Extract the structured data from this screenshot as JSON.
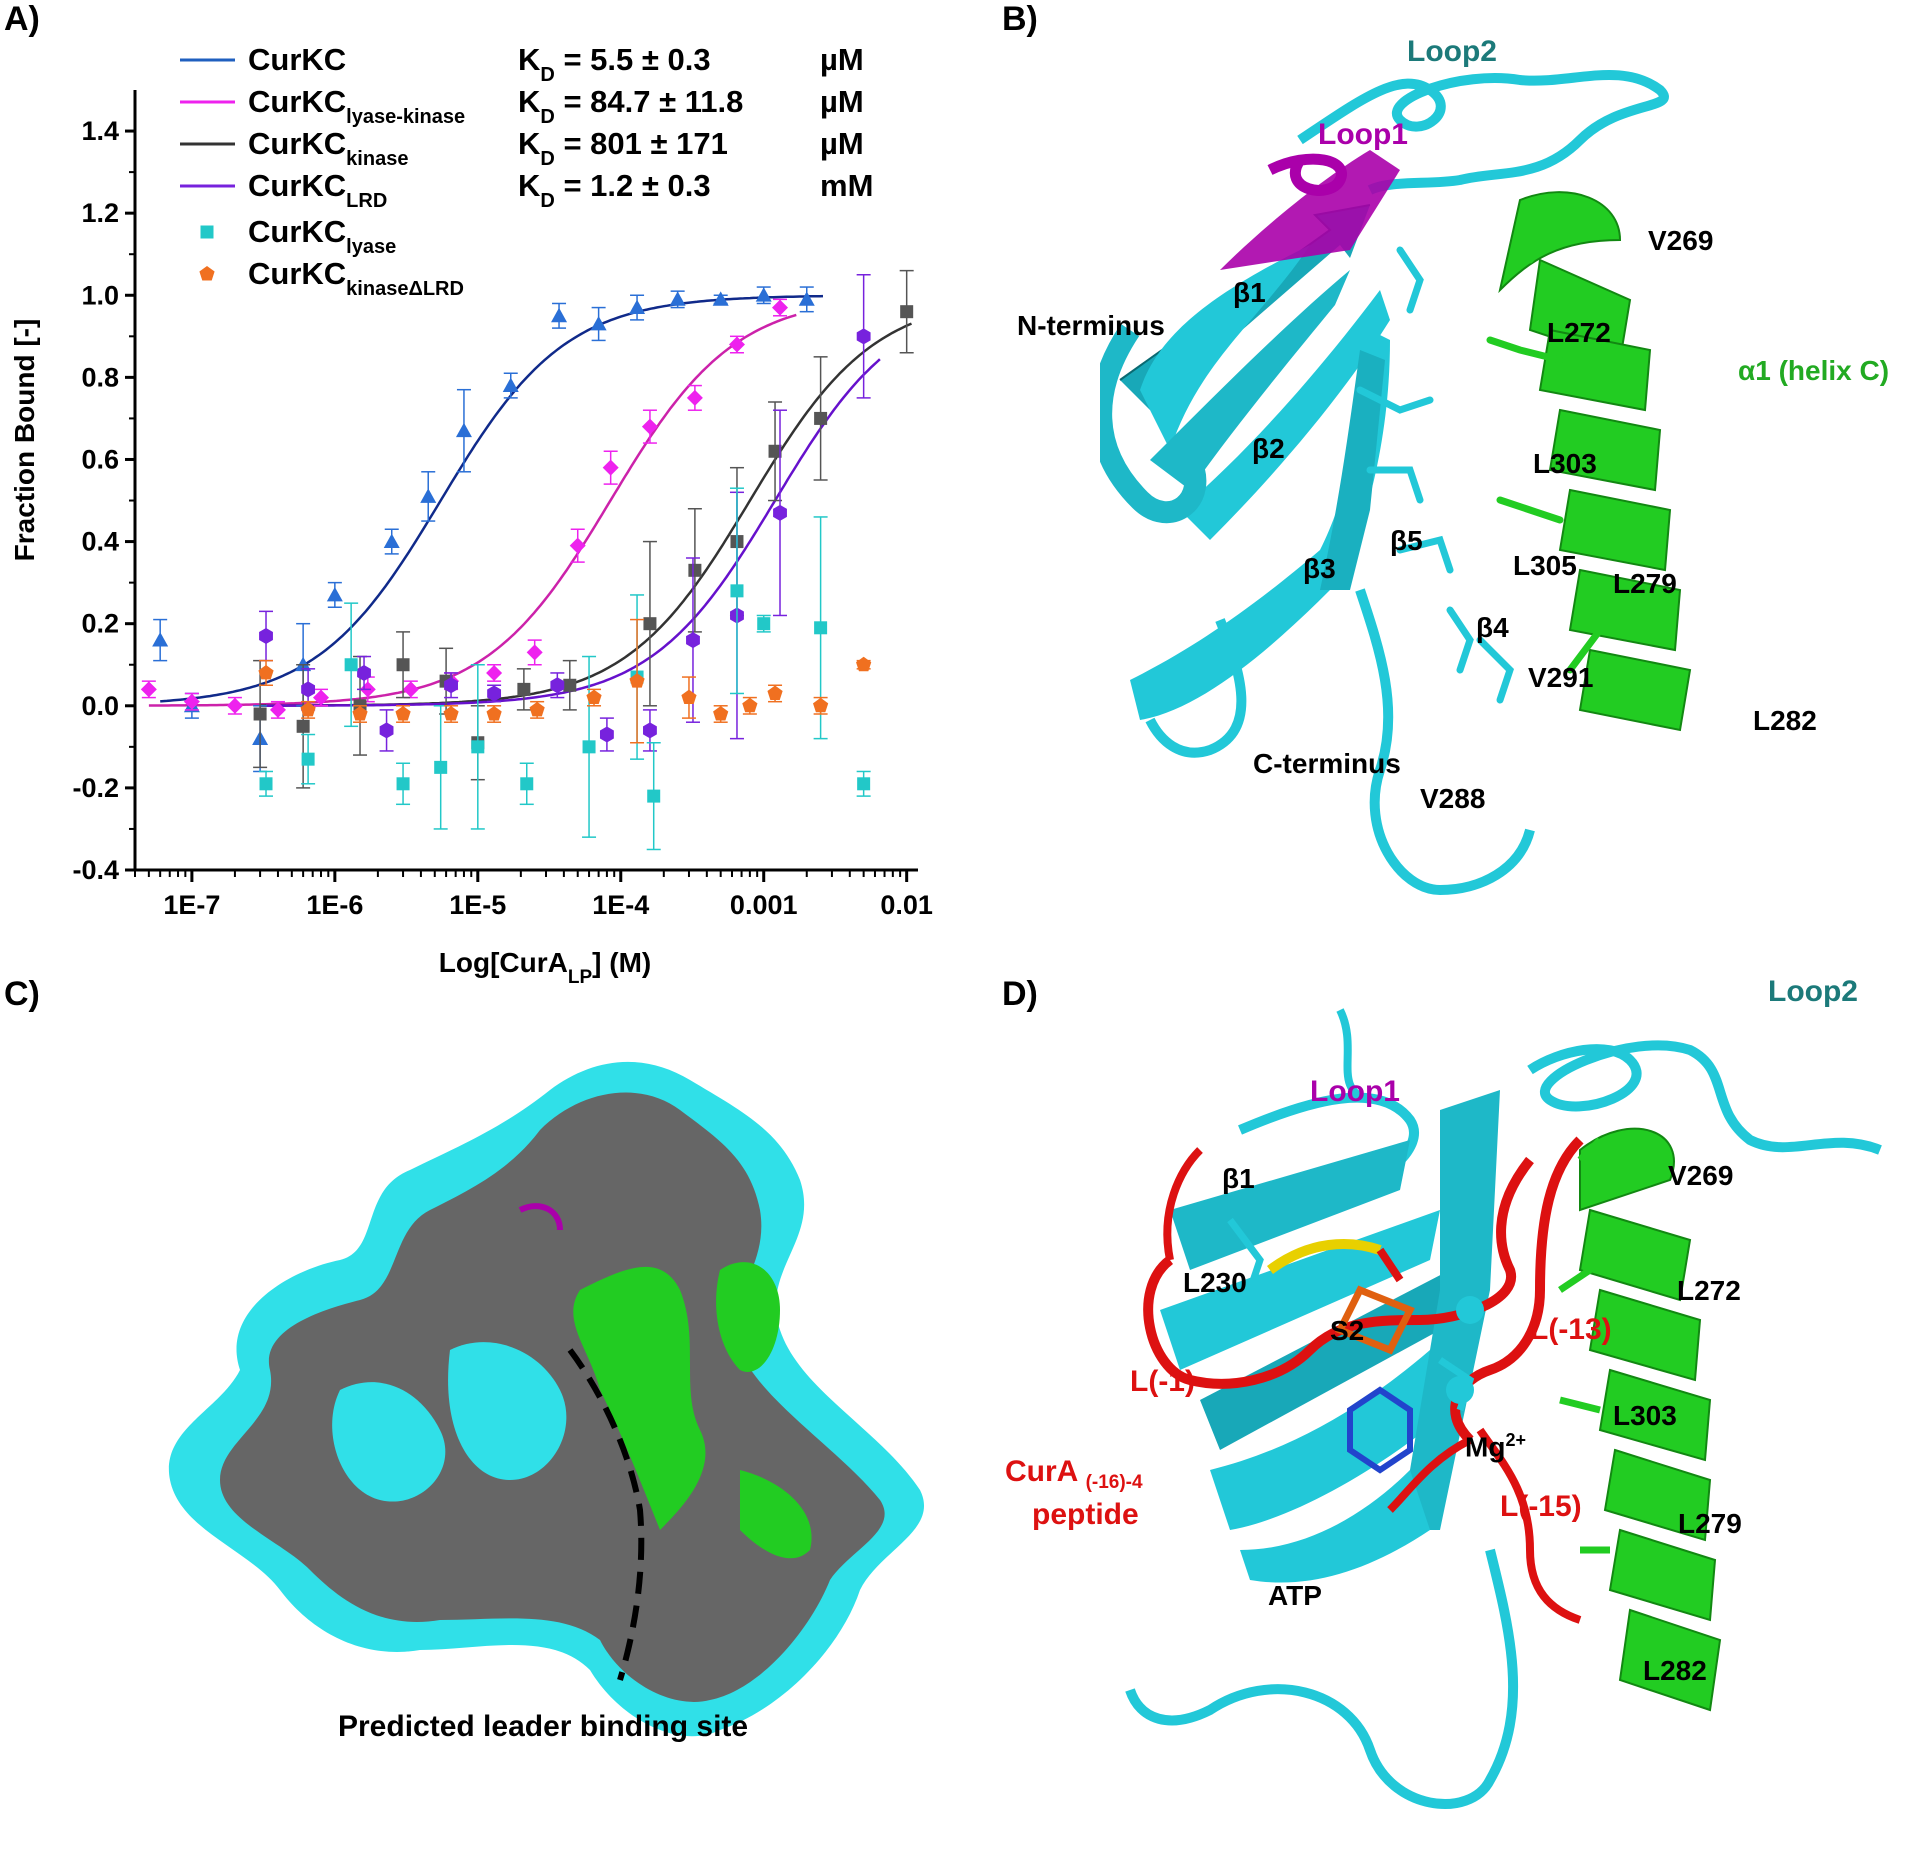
{
  "panels": {
    "a": "A)",
    "b": "B)",
    "c": "C)",
    "d": "D)"
  },
  "colors": {
    "cyan": "#22c8d8",
    "green": "#22cc22",
    "magenta": "#aa00aa",
    "red": "#dd1111",
    "teal_label": "#1c7a7a",
    "gray": "#666666"
  },
  "chart_data": {
    "type": "scatter",
    "xlabel": "Log[CurA",
    "xlabel_sub": "LP",
    "xlabel_tail": "] (M)",
    "ylabel": "Fraction Bound [-]",
    "xscale": "log",
    "xlim": [
      4e-08,
      0.012
    ],
    "ylim": [
      -0.4,
      1.5
    ],
    "xticks": [
      "1E-7",
      "1E-6",
      "1E-5",
      "1E-4",
      "0.001",
      "0.01"
    ],
    "yticks": [
      "-0.4",
      "-0.2",
      "0.0",
      "0.2",
      "0.4",
      "0.6",
      "0.8",
      "1.0",
      "1.2",
      "1.4"
    ],
    "legend": [
      {
        "name": "CurKC",
        "sub": "",
        "kd": "K",
        "kd_sub": "D",
        "kd_val": "= 5.5 ± 0.3",
        "unit": "µM",
        "color": "#1f5fbf",
        "marker": "line"
      },
      {
        "name": "CurKC",
        "sub": "lyase-kinase",
        "kd": "K",
        "kd_sub": "D",
        "kd_val": "= 84.7 ± 11.8",
        "unit": "µM",
        "color": "#ee22ee",
        "marker": "line"
      },
      {
        "name": "CurKC",
        "sub": "kinase",
        "kd": "K",
        "kd_sub": "D",
        "kd_val": "= 801 ± 171",
        "unit": "µM",
        "color": "#333333",
        "marker": "line"
      },
      {
        "name": "CurKC",
        "sub": "LRD",
        "kd": "K",
        "kd_sub": "D",
        "kd_val": "= 1.2 ± 0.3",
        "unit": "mM",
        "color": "#7722dd",
        "marker": "line"
      },
      {
        "name": "CurKC",
        "sub": "lyase",
        "kd": "",
        "kd_sub": "",
        "kd_val": "",
        "unit": "",
        "color": "#22c8c8",
        "marker": "square"
      },
      {
        "name": "CurKC",
        "sub": "kinaseΔLRD",
        "kd": "",
        "kd_sub": "",
        "kd_val": "",
        "unit": "",
        "color": "#f07020",
        "marker": "pentagon"
      }
    ],
    "series": [
      {
        "name": "CurKC",
        "color": "#2a6fd6",
        "fit": "#102a8a",
        "kd": 5.5e-06,
        "marker": "triangle",
        "points": [
          [
            6e-08,
            0.16,
            0.05
          ],
          [
            1e-07,
            0.0,
            0.03
          ],
          [
            3e-07,
            -0.08,
            0.08
          ],
          [
            6e-07,
            0.1,
            0.1
          ],
          [
            1e-06,
            0.27,
            0.03
          ],
          [
            2.5e-06,
            0.4,
            0.03
          ],
          [
            4.5e-06,
            0.51,
            0.06
          ],
          [
            8e-06,
            0.67,
            0.1
          ],
          [
            1.7e-05,
            0.78,
            0.03
          ],
          [
            3.7e-05,
            0.95,
            0.03
          ],
          [
            7e-05,
            0.93,
            0.04
          ],
          [
            0.00013,
            0.97,
            0.03
          ],
          [
            0.00025,
            0.99,
            0.02
          ],
          [
            0.0005,
            0.99,
            0.01
          ],
          [
            0.001,
            1.0,
            0.02
          ],
          [
            0.002,
            0.99,
            0.03
          ]
        ]
      },
      {
        "name": "CurKC lyase-kinase",
        "color": "#ee22ee",
        "fit": "#cc22aa",
        "kd": 8.47e-05,
        "marker": "diamond",
        "points": [
          [
            5e-08,
            0.04,
            0.02
          ],
          [
            1e-07,
            0.01,
            0.02
          ],
          [
            2e-07,
            0.0,
            0.02
          ],
          [
            4e-07,
            -0.01,
            0.02
          ],
          [
            8e-07,
            0.02,
            0.02
          ],
          [
            1.7e-06,
            0.04,
            0.03
          ],
          [
            3.4e-06,
            0.04,
            0.02
          ],
          [
            6.5e-06,
            0.06,
            0.02
          ],
          [
            1.3e-05,
            0.08,
            0.02
          ],
          [
            2.5e-05,
            0.13,
            0.03
          ],
          [
            5e-05,
            0.39,
            0.04
          ],
          [
            8.5e-05,
            0.58,
            0.04
          ],
          [
            0.00016,
            0.68,
            0.04
          ],
          [
            0.00033,
            0.75,
            0.03
          ],
          [
            0.00065,
            0.88,
            0.02
          ],
          [
            0.0013,
            0.97,
            0.02
          ]
        ]
      },
      {
        "name": "CurKC kinase",
        "color": "#555555",
        "fit": "#333333",
        "kd": 0.000801,
        "marker": "square",
        "points": [
          [
            3e-07,
            -0.02,
            0.13
          ],
          [
            6e-07,
            -0.05,
            0.15
          ],
          [
            1.5e-06,
            0.0,
            0.12
          ],
          [
            3e-06,
            0.1,
            0.08
          ],
          [
            6e-06,
            0.06,
            0.08
          ],
          [
            1e-05,
            -0.09,
            0.09
          ],
          [
            2.1e-05,
            0.04,
            0.05
          ],
          [
            4.4e-05,
            0.05,
            0.06
          ],
          [
            0.00016,
            0.2,
            0.2
          ],
          [
            0.00033,
            0.33,
            0.15
          ],
          [
            0.00065,
            0.4,
            0.18
          ],
          [
            0.0012,
            0.62,
            0.12
          ],
          [
            0.0025,
            0.7,
            0.15
          ],
          [
            0.01,
            0.96,
            0.1
          ]
        ]
      },
      {
        "name": "CurKC LRD",
        "color": "#7722dd",
        "fit": "#6611cc",
        "kd": 0.0012,
        "marker": "hexagon",
        "points": [
          [
            3.3e-07,
            0.17,
            0.06
          ],
          [
            6.5e-07,
            0.04,
            0.05
          ],
          [
            1.6e-06,
            0.08,
            0.04
          ],
          [
            2.3e-06,
            -0.06,
            0.05
          ],
          [
            6.5e-06,
            0.05,
            0.03
          ],
          [
            1.3e-05,
            0.03,
            0.02
          ],
          [
            3.6e-05,
            0.05,
            0.03
          ],
          [
            8e-05,
            -0.07,
            0.04
          ],
          [
            0.00016,
            -0.06,
            0.05
          ],
          [
            0.00032,
            0.16,
            0.2
          ],
          [
            0.00065,
            0.22,
            0.3
          ],
          [
            0.0013,
            0.47,
            0.25
          ],
          [
            0.005,
            0.9,
            0.15
          ]
        ]
      },
      {
        "name": "CurKC lyase",
        "color": "#22c8c8",
        "fit": "",
        "kd": 0,
        "marker": "square",
        "points": [
          [
            3.3e-07,
            -0.19,
            0.03
          ],
          [
            6.5e-07,
            -0.13,
            0.06
          ],
          [
            1.3e-06,
            0.1,
            0.15
          ],
          [
            3e-06,
            -0.19,
            0.05
          ],
          [
            5.5e-06,
            -0.15,
            0.15
          ],
          [
            1e-05,
            -0.1,
            0.2
          ],
          [
            2.2e-05,
            -0.19,
            0.05
          ],
          [
            6e-05,
            -0.1,
            0.22
          ],
          [
            0.00013,
            0.07,
            0.2
          ],
          [
            0.00017,
            -0.22,
            0.13
          ],
          [
            0.00065,
            0.28,
            0.25
          ],
          [
            0.001,
            0.2,
            0.02
          ],
          [
            0.0025,
            0.19,
            0.27
          ],
          [
            0.005,
            -0.19,
            0.03
          ]
        ]
      },
      {
        "name": "CurKC kinaseΔLRD",
        "color": "#f07020",
        "fit": "",
        "kd": 0,
        "marker": "pentagon",
        "points": [
          [
            3.3e-07,
            0.08,
            0.03
          ],
          [
            6.5e-07,
            -0.01,
            0.02
          ],
          [
            1.5e-06,
            -0.02,
            0.02
          ],
          [
            3e-06,
            -0.02,
            0.02
          ],
          [
            6.5e-06,
            -0.02,
            0.02
          ],
          [
            1.3e-05,
            -0.02,
            0.02
          ],
          [
            2.6e-05,
            -0.01,
            0.02
          ],
          [
            6.5e-05,
            0.02,
            0.02
          ],
          [
            0.00013,
            0.06,
            0.15
          ],
          [
            0.0003,
            0.02,
            0.05
          ],
          [
            0.0005,
            -0.02,
            0.02
          ],
          [
            0.0008,
            0.0,
            0.02
          ],
          [
            0.0012,
            0.03,
            0.02
          ],
          [
            0.0025,
            0.0,
            0.02
          ],
          [
            0.005,
            0.1,
            0.01
          ]
        ]
      }
    ]
  },
  "panel_b": {
    "loop2": "Loop2",
    "loop1": "Loop1",
    "v269": "V269",
    "b1": "β1",
    "n_term": "N-terminus",
    "l272": "L272",
    "helix": "α1 (helix C)",
    "b2": "β2",
    "l303": "L303",
    "b5": "β5",
    "b3": "β3",
    "l305": "L305",
    "l279": "L279",
    "b4": "β4",
    "v291": "V291",
    "l282": "L282",
    "c_term": "C-terminus",
    "v288": "V288"
  },
  "panel_c": {
    "caption": "Predicted leader binding site"
  },
  "panel_d": {
    "loop2": "Loop2",
    "loop1": "Loop1",
    "b1": "β1",
    "v269": "V269",
    "l230": "L230",
    "s2": "S2",
    "l13": "L(-13)",
    "l272": "L272",
    "l1": "L(-1)",
    "l303": "L303",
    "mg": "Mg",
    "mg_sup": "2+",
    "cura": "CurA",
    "cura_sub": "(-16)-4",
    "peptide": "peptide",
    "l15": "L(-15)",
    "l279": "L279",
    "atp": "ATP",
    "l282": "L282"
  }
}
